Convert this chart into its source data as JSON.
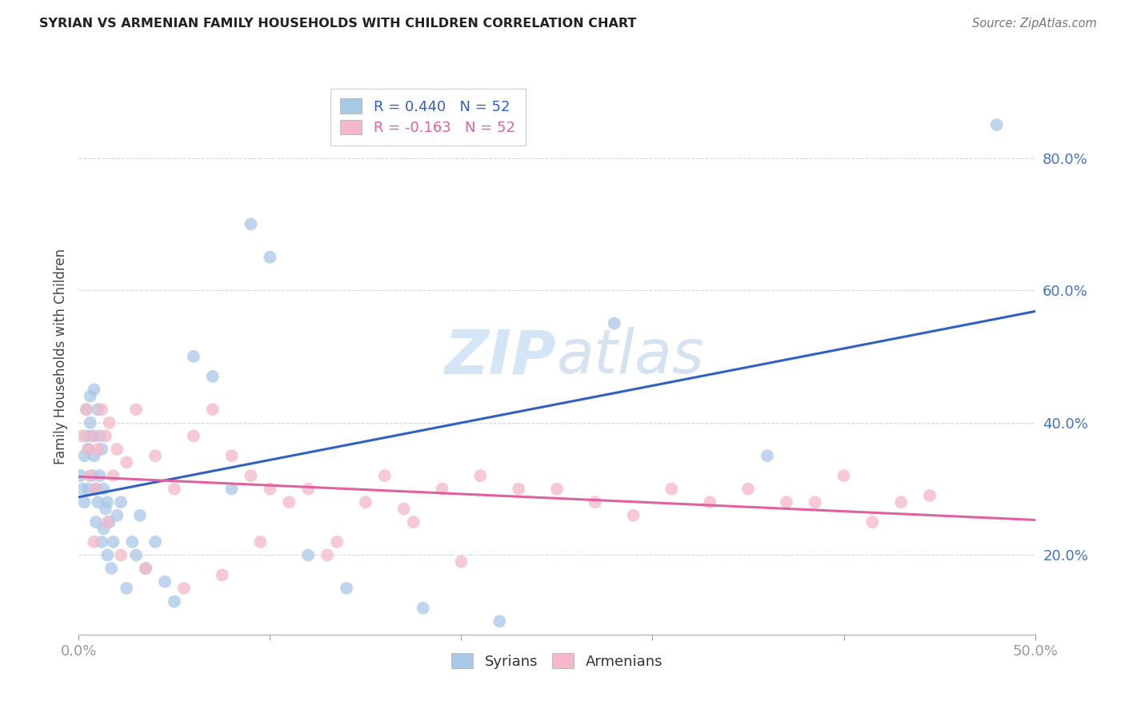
{
  "title": "SYRIAN VS ARMENIAN FAMILY HOUSEHOLDS WITH CHILDREN CORRELATION CHART",
  "source": "Source: ZipAtlas.com",
  "ylabel": "Family Households with Children",
  "syrians_R": 0.44,
  "syrians_N": 52,
  "armenians_R": -0.163,
  "armenians_N": 52,
  "xlim": [
    0.0,
    0.5
  ],
  "ylim": [
    0.08,
    0.92
  ],
  "syrian_color": "#a8c8e8",
  "armenian_color": "#f4b8c8",
  "syrian_line_color": "#3060c0",
  "armenian_line_color": "#e060a0",
  "tick_color": "#4472c4",
  "watermark_color": "#d0e4f4",
  "syrians_x": [
    0.001,
    0.002,
    0.003,
    0.003,
    0.004,
    0.004,
    0.005,
    0.005,
    0.006,
    0.006,
    0.007,
    0.007,
    0.008,
    0.008,
    0.009,
    0.009,
    0.01,
    0.01,
    0.011,
    0.011,
    0.012,
    0.012,
    0.013,
    0.013,
    0.014,
    0.015,
    0.015,
    0.016,
    0.017,
    0.018,
    0.02,
    0.022,
    0.025,
    0.028,
    0.03,
    0.032,
    0.035,
    0.04,
    0.045,
    0.05,
    0.06,
    0.07,
    0.08,
    0.09,
    0.1,
    0.12,
    0.14,
    0.18,
    0.22,
    0.28,
    0.36,
    0.48
  ],
  "syrians_y": [
    0.32,
    0.3,
    0.35,
    0.28,
    0.42,
    0.38,
    0.36,
    0.3,
    0.44,
    0.4,
    0.38,
    0.32,
    0.45,
    0.35,
    0.3,
    0.25,
    0.42,
    0.28,
    0.38,
    0.32,
    0.36,
    0.22,
    0.3,
    0.24,
    0.27,
    0.28,
    0.2,
    0.25,
    0.18,
    0.22,
    0.26,
    0.28,
    0.15,
    0.22,
    0.2,
    0.26,
    0.18,
    0.22,
    0.16,
    0.13,
    0.5,
    0.47,
    0.3,
    0.7,
    0.65,
    0.2,
    0.15,
    0.12,
    0.1,
    0.55,
    0.35,
    0.85
  ],
  "armenians_x": [
    0.002,
    0.004,
    0.005,
    0.006,
    0.008,
    0.009,
    0.01,
    0.012,
    0.014,
    0.016,
    0.018,
    0.02,
    0.025,
    0.03,
    0.04,
    0.05,
    0.06,
    0.07,
    0.08,
    0.09,
    0.1,
    0.11,
    0.12,
    0.135,
    0.15,
    0.16,
    0.175,
    0.19,
    0.21,
    0.23,
    0.25,
    0.27,
    0.29,
    0.31,
    0.33,
    0.35,
    0.37,
    0.385,
    0.4,
    0.415,
    0.43,
    0.445,
    0.008,
    0.015,
    0.022,
    0.035,
    0.055,
    0.075,
    0.095,
    0.13,
    0.17,
    0.2
  ],
  "armenians_y": [
    0.38,
    0.42,
    0.36,
    0.32,
    0.38,
    0.3,
    0.36,
    0.42,
    0.38,
    0.4,
    0.32,
    0.36,
    0.34,
    0.42,
    0.35,
    0.3,
    0.38,
    0.42,
    0.35,
    0.32,
    0.3,
    0.28,
    0.3,
    0.22,
    0.28,
    0.32,
    0.25,
    0.3,
    0.32,
    0.3,
    0.3,
    0.28,
    0.26,
    0.3,
    0.28,
    0.3,
    0.28,
    0.28,
    0.32,
    0.25,
    0.28,
    0.29,
    0.22,
    0.25,
    0.2,
    0.18,
    0.15,
    0.17,
    0.22,
    0.2,
    0.27,
    0.19
  ]
}
